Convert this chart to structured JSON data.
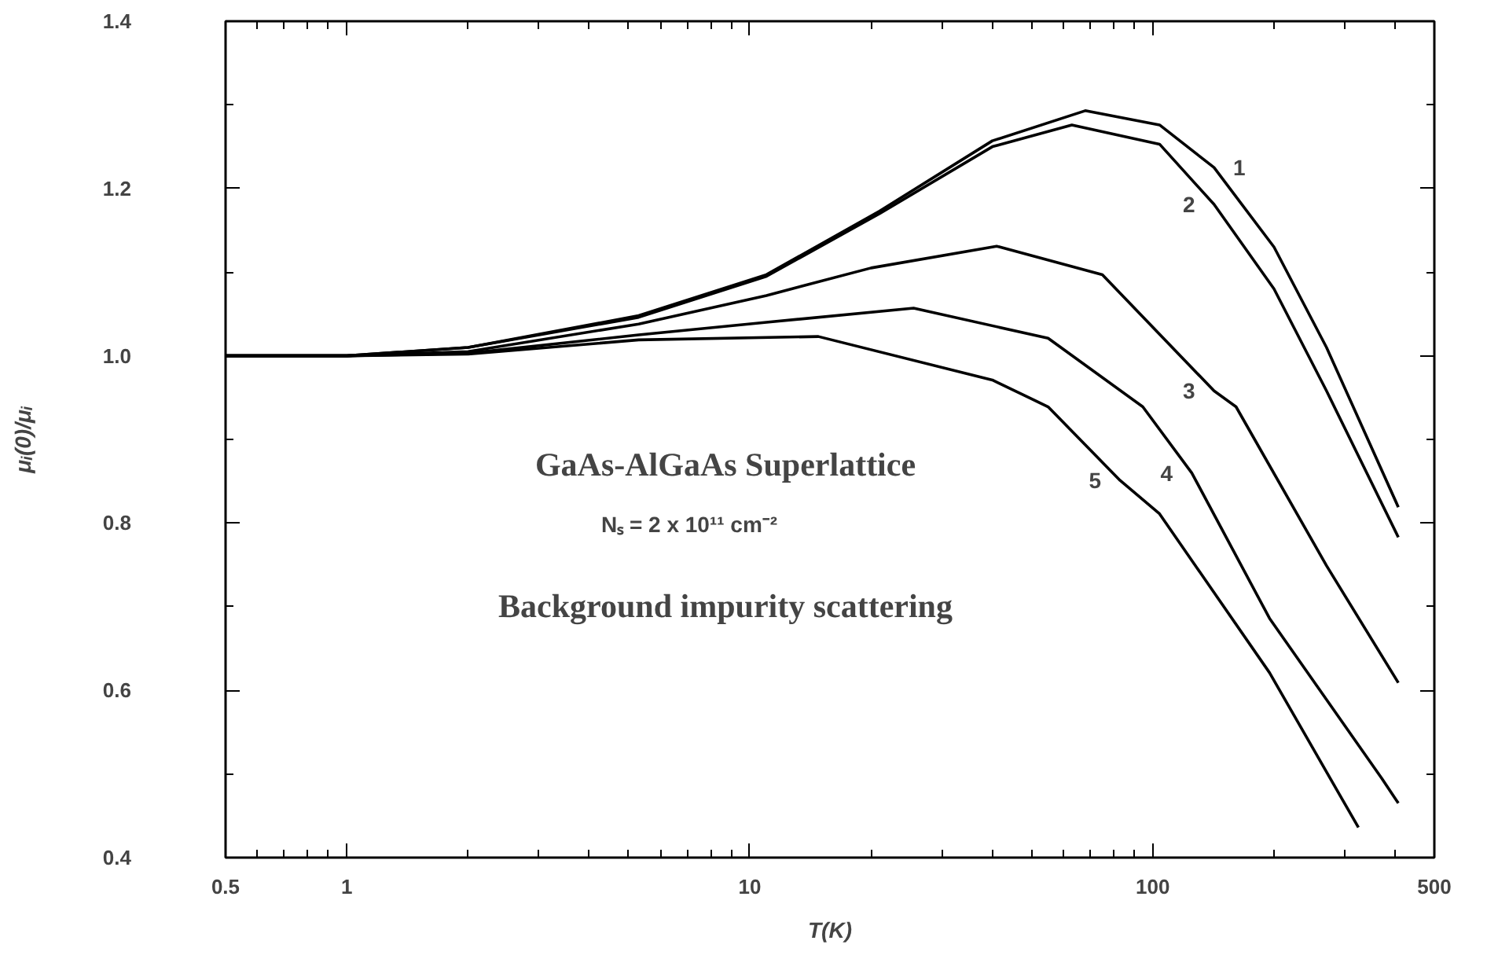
{
  "chart_data": {
    "type": "line",
    "xlabel": "T(K)",
    "ylabel": "μᵢ(0)/μᵢ",
    "log": "x",
    "grid": false,
    "marker": "none",
    "line_style": "solid",
    "xlim": [
      0.5,
      500
    ],
    "xticks": [
      0.5,
      1,
      10,
      100,
      500
    ],
    "ylim": [
      0.4,
      1.4
    ],
    "yticks": [
      {
        "value": 0.4,
        "label": "0.4"
      },
      {
        "value": 0.6,
        "label": "0.6"
      },
      {
        "value": 0.8,
        "label": "0.8"
      },
      {
        "value": 1.0,
        "label": "1.0"
      },
      {
        "value": 1.2,
        "label": "1.2"
      },
      {
        "value": 1.4,
        "label": "1.4"
      }
    ],
    "series": [
      {
        "name": "1",
        "color": "#000000",
        "x": [
          0.5,
          1,
          2,
          5.3,
          11,
          21,
          40,
          68,
          104,
          142,
          200,
          270,
          407
        ],
        "values": [
          1.0,
          1.0,
          1.01,
          1.048,
          1.097,
          1.173,
          1.257,
          1.293,
          1.276,
          1.225,
          1.13,
          1.01,
          0.819
        ]
      },
      {
        "name": "2",
        "color": "#000000",
        "x": [
          0.5,
          1,
          2,
          5.3,
          11,
          21,
          40,
          63,
          104,
          142,
          200,
          270,
          407
        ],
        "values": [
          1.0,
          1.0,
          1.01,
          1.046,
          1.095,
          1.17,
          1.25,
          1.276,
          1.253,
          1.181,
          1.08,
          0.958,
          0.783
        ]
      },
      {
        "name": "3",
        "color": "#000000",
        "x": [
          0.5,
          1,
          2,
          5.3,
          11,
          20,
          41,
          75,
          142,
          161,
          270,
          407
        ],
        "values": [
          1.0,
          1.0,
          1.005,
          1.038,
          1.072,
          1.105,
          1.131,
          1.097,
          0.958,
          0.939,
          0.749,
          0.609
        ]
      },
      {
        "name": "4",
        "color": "#000000",
        "x": [
          0.5,
          1,
          2,
          5.3,
          11,
          25.5,
          55,
          94.5,
          125,
          195,
          370,
          407
        ],
        "values": [
          1.0,
          1.0,
          1.003,
          1.025,
          1.04,
          1.057,
          1.021,
          0.939,
          0.86,
          0.686,
          0.495,
          0.465
        ]
      },
      {
        "name": "5",
        "color": "#000000",
        "x": [
          0.5,
          1,
          2,
          5.3,
          14.8,
          40,
          55,
          83,
          104,
          195,
          324
        ],
        "values": [
          1.0,
          1.0,
          1.002,
          1.019,
          1.023,
          0.971,
          0.939,
          0.851,
          0.811,
          0.621,
          0.436
        ]
      }
    ],
    "annotations": [
      "GaAs-AlGaAs Superlattice",
      "Nₛ = 2 x 10¹¹ cm⁻²",
      "Background impurity scattering"
    ]
  }
}
